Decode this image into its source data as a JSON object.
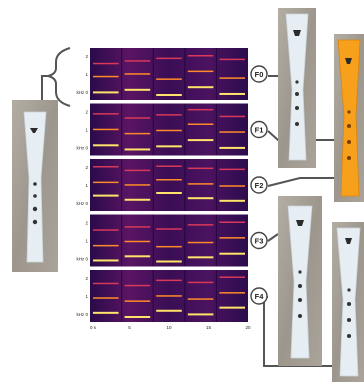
{
  "figure": {
    "panels": [
      {
        "label": "F0",
        "yticks": [
          "2",
          "1",
          "kHz 0"
        ]
      },
      {
        "label": "F1",
        "yticks": [
          "2",
          "1",
          "kHz 0"
        ]
      },
      {
        "label": "F2",
        "yticks": [
          "2",
          "1",
          "kHz 0"
        ]
      },
      {
        "label": "F3",
        "yticks": [
          "2",
          "1",
          "kHz 0"
        ]
      },
      {
        "label": "F4",
        "yticks": [
          "2",
          "1",
          "kHz 0"
        ]
      }
    ],
    "xticks": [
      "0 s",
      "5",
      "10",
      "15",
      "20"
    ],
    "colors": {
      "spectrogram_bg": "#1c0a3e",
      "flute_white": "#e6eef4",
      "flute_orange": "#f7a01c",
      "wood_bg": "#a8a39a",
      "connector": "#555555"
    }
  }
}
